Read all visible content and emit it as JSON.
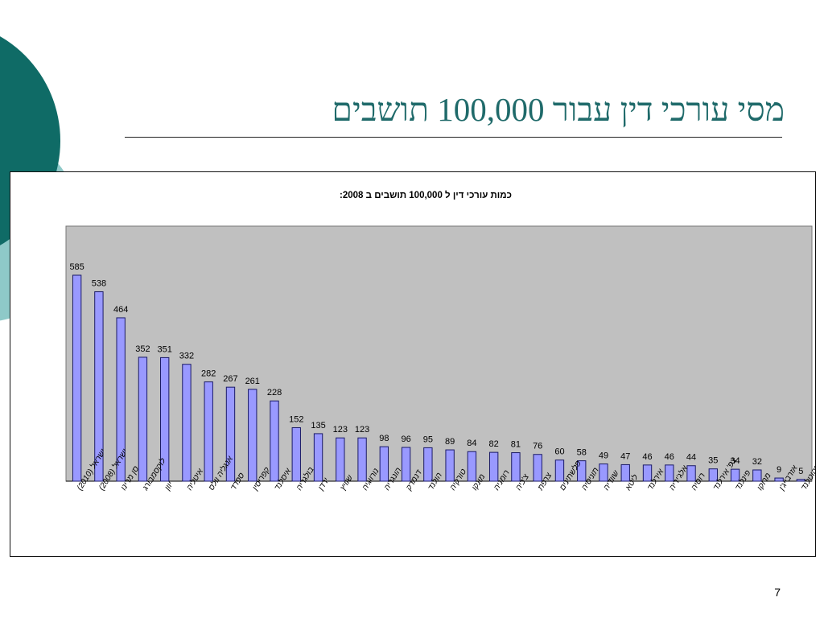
{
  "slide": {
    "title": "מסי עורכי דין עבור 100,000 תושבים",
    "page_number": "7"
  },
  "colors": {
    "accent_dark": "#0f6b66",
    "accent_light": "#8ec9c8",
    "title_text": "#1f6a6a",
    "plot_background": "#c0c0c0",
    "bar_fill": "#9999ff",
    "bar_stroke": "#1a1a66"
  },
  "chart_data": {
    "type": "bar",
    "title": "כמות עורכי דין ל 100,000 תושבים ב 2008:",
    "xlabel": "",
    "ylabel": "",
    "ylim": [
      0,
      600
    ],
    "grid": false,
    "legend": "none",
    "categories": [
      "ישראל (2010)",
      "ישראל (2008)",
      "סן מרינו",
      "לוקסמבורג",
      "יוון",
      "איטליה",
      "אנגליה וולס",
      "ספרד",
      "קפריסין",
      "איסלנד",
      "בולגריה",
      "ירדן",
      "שוויץ",
      "נורווגיה",
      "הונגריה",
      "דנמרק",
      "הולנד",
      "טורקיה",
      "מונקו",
      "רומניה",
      "צ'כיה",
      "צרפת",
      "פלשתינים",
      "תוניסיה",
      "שוודיה",
      "ליטא",
      "אירלנד",
      "אלג'יריה",
      "רוסיה",
      "צפ' אירלנד",
      "פינלנד",
      "מרוקו",
      "אזרבייג'ן",
      "סקוטלנד"
    ],
    "values": [
      585,
      538,
      464,
      352,
      351,
      332,
      282,
      267,
      261,
      228,
      152,
      135,
      123,
      123,
      98,
      96,
      95,
      89,
      84,
      82,
      81,
      76,
      60,
      58,
      49,
      47,
      46,
      46,
      44,
      35,
      34,
      32,
      9,
      5
    ]
  }
}
